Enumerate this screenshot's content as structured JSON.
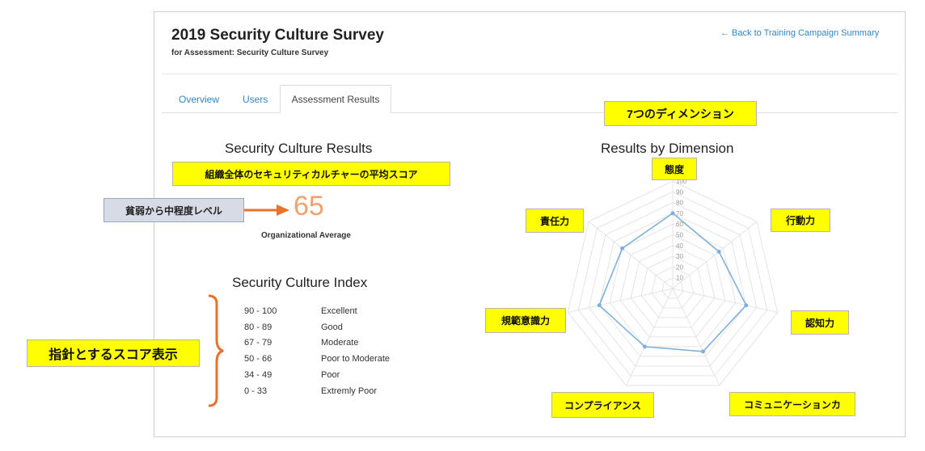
{
  "header": {
    "title": "2019 Security Culture Survey",
    "subtitle": "for Assessment: Security Culture Survey",
    "back_link": "← Back to Training Campaign Summary"
  },
  "tabs": [
    {
      "label": "Overview",
      "active": false
    },
    {
      "label": "Users",
      "active": false
    },
    {
      "label": "Assessment Results",
      "active": true
    }
  ],
  "results": {
    "heading": "Security Culture Results",
    "score": "65",
    "score_label": "Organizational Average",
    "score_color": "#f0a36e"
  },
  "index": {
    "heading": "Security Culture Index",
    "rows": [
      {
        "range": "90 - 100",
        "label": "Excellent"
      },
      {
        "range": "80 - 89",
        "label": "Good"
      },
      {
        "range": "67 - 79",
        "label": "Moderate"
      },
      {
        "range": "50 - 66",
        "label": "Poor to Moderate"
      },
      {
        "range": "34 - 49",
        "label": "Poor"
      },
      {
        "range": "0 - 33",
        "label": "Extremly Poor"
      }
    ]
  },
  "chart_data": {
    "type": "radar",
    "title": "Results by Dimension",
    "axes": [
      "態度",
      "行動力",
      "認知力",
      "コミュニケーションカ",
      "コンプライアンス",
      "規範意識力",
      "責任力"
    ],
    "values": [
      70,
      55,
      70,
      65,
      60,
      70,
      60
    ],
    "rlim": [
      0,
      100
    ],
    "ticks": [
      "10",
      "20",
      "30",
      "40",
      "50",
      "60",
      "70",
      "80",
      "90",
      "100"
    ],
    "series_color": "#7eb0de"
  },
  "annotations": {
    "dimensions_note": "7つのディメンション",
    "average_note": "組織全体のセキュリティカルチャーの平均スコア",
    "level_note": "貧弱から中程度レベル",
    "index_note": "指針とするスコア表示",
    "highlight_color": "#ffff00",
    "arrow_color": "#e8722a"
  }
}
